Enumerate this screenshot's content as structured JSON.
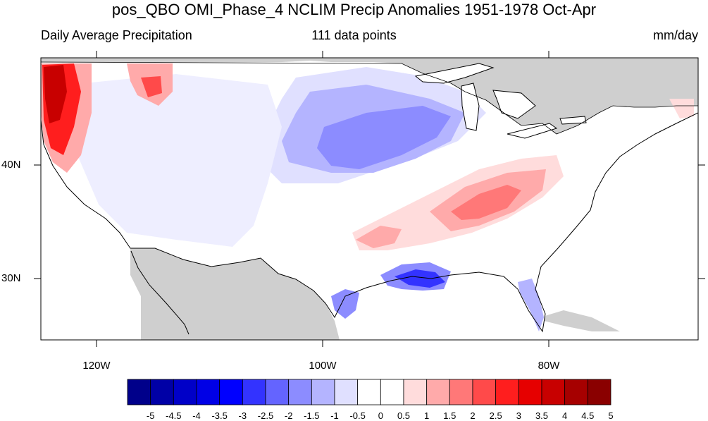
{
  "title": "pos_QBO OMI_Phase_4 NCLIM Precip Anomalies 1951-1978 Oct-Apr",
  "subtitle_left": "Daily Average Precipitation",
  "subtitle_center": "111 data points",
  "subtitle_right": "mm/day",
  "lat_labels": [
    "40N",
    "30N"
  ],
  "lon_labels": [
    "120W",
    "100W",
    "80W"
  ],
  "colorbar": {
    "labels": [
      "-5",
      "-4.5",
      "-4",
      "-3.5",
      "-3",
      "-2.5",
      "-2",
      "-1.5",
      "-1",
      "-0.5",
      "0",
      "0.5",
      "1",
      "1.5",
      "2",
      "2.5",
      "3",
      "3.5",
      "4",
      "4.5",
      "5"
    ],
    "colors": [
      "#00008a",
      "#0000a6",
      "#0000c8",
      "#0000e6",
      "#0000ff",
      "#3333ff",
      "#6464ff",
      "#8c8cff",
      "#b4b4ff",
      "#e0e0ff",
      "#ffffff",
      "#ffffff",
      "#ffdcdc",
      "#ffaaaa",
      "#ff7878",
      "#ff4a4a",
      "#ff1e1e",
      "#e60000",
      "#c80000",
      "#a60000",
      "#8a0000"
    ]
  },
  "colors": {
    "land_mask": "#d0d0d0",
    "border": "#000000"
  }
}
